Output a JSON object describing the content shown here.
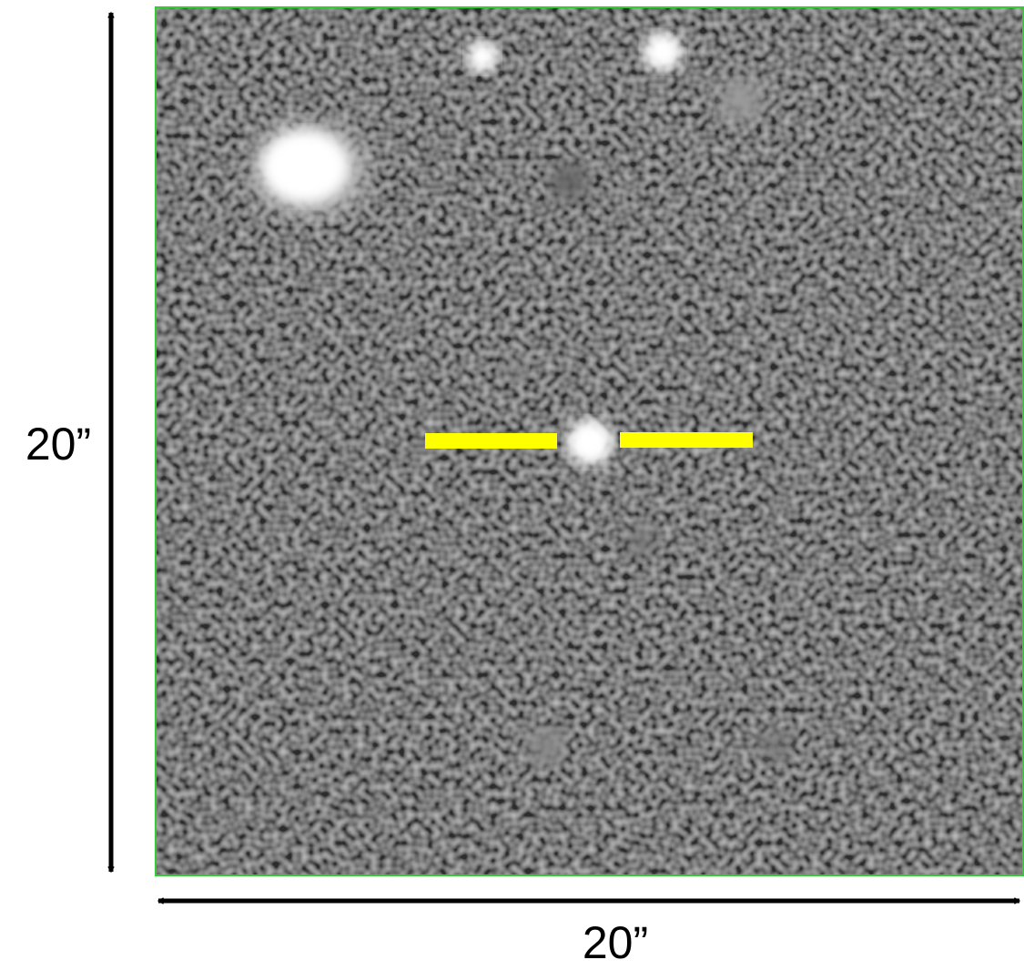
{
  "scale_bars": {
    "vertical": {
      "label": "20”"
    },
    "horizontal": {
      "label": "20”"
    }
  }
}
